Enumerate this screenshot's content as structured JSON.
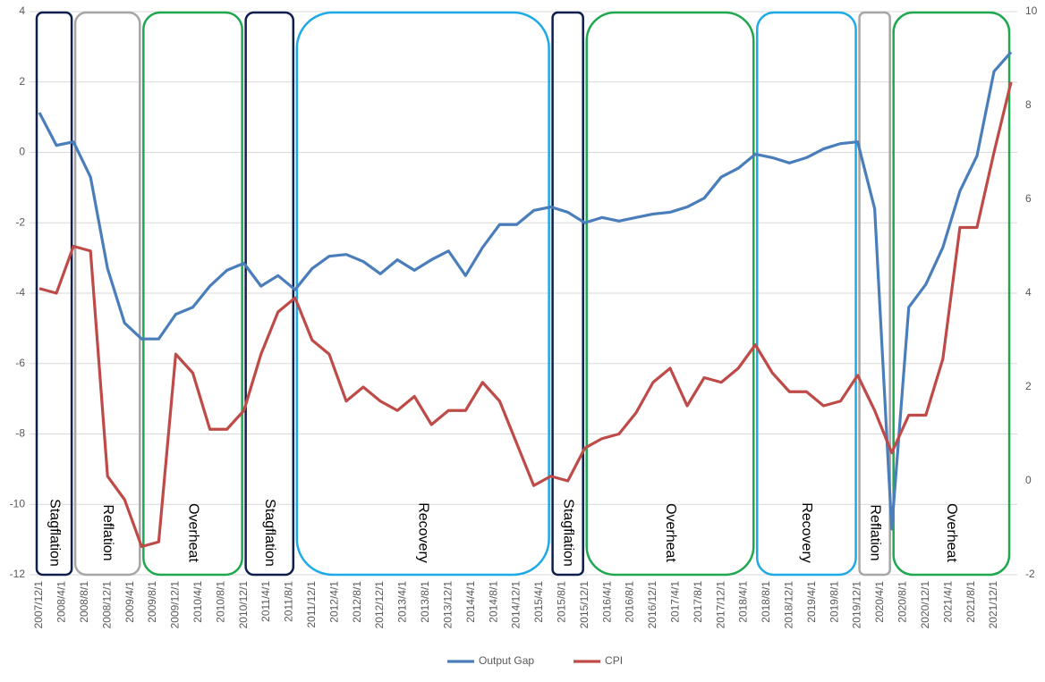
{
  "chart_data": {
    "type": "line",
    "x": [
      "2007/12/1",
      "2008/3/1",
      "2008/6/1",
      "2008/9/1",
      "2008/12/1",
      "2009/3/1",
      "2009/6/1",
      "2009/9/1",
      "2009/12/1",
      "2010/3/1",
      "2010/6/1",
      "2010/9/1",
      "2010/12/1",
      "2011/3/1",
      "2011/6/1",
      "2011/9/1",
      "2011/12/1",
      "2012/3/1",
      "2012/6/1",
      "2012/9/1",
      "2012/12/1",
      "2013/3/1",
      "2013/6/1",
      "2013/9/1",
      "2013/12/1",
      "2014/3/1",
      "2014/6/1",
      "2014/9/1",
      "2014/12/1",
      "2015/3/1",
      "2015/6/1",
      "2015/9/1",
      "2015/12/1",
      "2016/3/1",
      "2016/6/1",
      "2016/9/1",
      "2016/12/1",
      "2017/3/1",
      "2017/6/1",
      "2017/9/1",
      "2017/12/1",
      "2018/3/1",
      "2018/6/1",
      "2018/9/1",
      "2018/12/1",
      "2019/3/1",
      "2019/6/1",
      "2019/9/1",
      "2019/12/1",
      "2020/3/1",
      "2020/6/1",
      "2020/9/1",
      "2020/12/1",
      "2021/3/1",
      "2021/6/1",
      "2021/9/1",
      "2021/12/1",
      "2022/3/1"
    ],
    "xticks": [
      "2007/12/1",
      "2008/4/1",
      "2008/8/1",
      "2008/12/1",
      "2009/4/1",
      "2009/8/1",
      "2009/12/1",
      "2010/4/1",
      "2010/8/1",
      "2010/12/1",
      "2011/4/1",
      "2011/8/1",
      "2011/12/1",
      "2012/4/1",
      "2012/8/1",
      "2012/12/1",
      "2013/4/1",
      "2013/8/1",
      "2013/12/1",
      "2014/4/1",
      "2014/8/1",
      "2014/12/1",
      "2015/4/1",
      "2015/8/1",
      "2015/12/1",
      "2016/4/1",
      "2016/8/1",
      "2016/12/1",
      "2017/4/1",
      "2017/8/1",
      "2017/12/1",
      "2018/4/1",
      "2018/8/1",
      "2018/12/1",
      "2019/4/1",
      "2019/8/1",
      "2019/12/1",
      "2020/4/1",
      "2020/8/1",
      "2020/12/1",
      "2021/4/1",
      "2021/8/1",
      "2021/12/1"
    ],
    "series": [
      {
        "name": "Output Gap",
        "color": "#4a7ebb",
        "axis": "y",
        "values": [
          1.13,
          0.2,
          0.3,
          -0.7,
          -3.3,
          -4.85,
          -5.3,
          -5.3,
          -4.6,
          -4.4,
          -3.8,
          -3.35,
          -3.15,
          -3.8,
          -3.5,
          -3.9,
          -3.3,
          -2.95,
          -2.9,
          -3.1,
          -3.45,
          -3.05,
          -3.35,
          -3.05,
          -2.8,
          -3.5,
          -2.7,
          -2.05,
          -2.05,
          -1.65,
          -1.55,
          -1.7,
          -2.0,
          -1.85,
          -1.95,
          -1.85,
          -1.75,
          -1.7,
          -1.55,
          -1.3,
          -0.7,
          -0.45,
          -0.05,
          -0.15,
          -0.3,
          -0.15,
          0.1,
          0.25,
          0.3,
          -1.6,
          -10.7,
          -4.4,
          -3.75,
          -2.7,
          -1.1,
          -0.1,
          2.3,
          2.85
        ]
      },
      {
        "name": "CPI",
        "color": "#be4b48",
        "axis": "y2",
        "values": [
          4.1,
          4.0,
          5.0,
          4.9,
          0.1,
          -0.4,
          -1.4,
          -1.3,
          2.7,
          2.3,
          1.1,
          1.1,
          1.5,
          2.7,
          3.6,
          3.9,
          3.0,
          2.7,
          1.7,
          2.0,
          1.7,
          1.5,
          1.8,
          1.2,
          1.5,
          1.5,
          2.1,
          1.7,
          0.8,
          -0.1,
          0.1,
          0.0,
          0.7,
          0.9,
          1.0,
          1.45,
          2.1,
          2.4,
          1.6,
          2.2,
          2.1,
          2.4,
          2.9,
          2.3,
          1.9,
          1.9,
          1.6,
          1.7,
          2.25,
          1.5,
          0.6,
          1.4,
          1.4,
          2.6,
          5.4,
          5.4,
          7.0,
          8.5
        ]
      }
    ],
    "ylim": [
      -12,
      4
    ],
    "yticks": [
      -12,
      -10,
      -8,
      -6,
      -4,
      -2,
      0,
      2,
      4
    ],
    "y2lim": [
      -2,
      10
    ],
    "y2ticks": [
      -2,
      0,
      2,
      4,
      6,
      8,
      10
    ],
    "grid": true,
    "legend": "bottom",
    "regimes": [
      {
        "label": "Stagflation",
        "color": "#0e1f4d",
        "start": "2007/12/1",
        "end": "2008/6/1"
      },
      {
        "label": "Reflation",
        "color": "#a6a6a6",
        "start": "2008/6/1",
        "end": "2009/6/1"
      },
      {
        "label": "Overheat",
        "color": "#1fa84f",
        "start": "2009/6/1",
        "end": "2010/12/1"
      },
      {
        "label": "Stagflation",
        "color": "#0e1f4d",
        "start": "2010/12/1",
        "end": "2011/9/1"
      },
      {
        "label": "Recovery",
        "color": "#1eaae7",
        "start": "2011/9/1",
        "end": "2015/6/1"
      },
      {
        "label": "Stagflation",
        "color": "#0e1f4d",
        "start": "2015/6/1",
        "end": "2015/12/1"
      },
      {
        "label": "Overheat",
        "color": "#1fa84f",
        "start": "2015/12/1",
        "end": "2018/6/1"
      },
      {
        "label": "Recovery",
        "color": "#1eaae7",
        "start": "2018/6/1",
        "end": "2019/12/1"
      },
      {
        "label": "Reflation",
        "color": "#a6a6a6",
        "start": "2019/12/1",
        "end": "2020/6/1"
      },
      {
        "label": "Overheat",
        "color": "#1fa84f",
        "start": "2020/6/1",
        "end": "2022/3/1"
      }
    ]
  }
}
